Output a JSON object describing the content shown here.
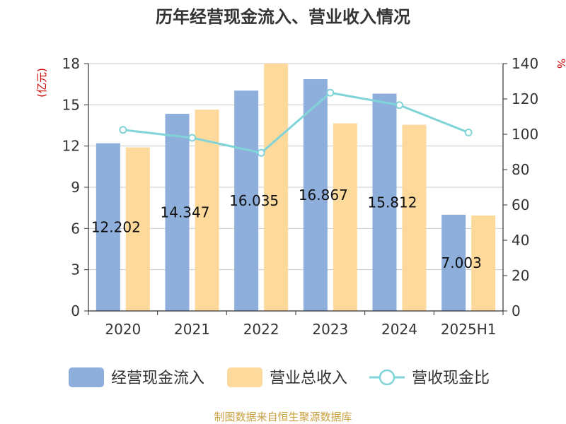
{
  "chart_data": {
    "type": "bar",
    "title": "历年经营现金流入、营业收入情况",
    "categories": [
      "2020",
      "2021",
      "2022",
      "2023",
      "2024",
      "2025H1"
    ],
    "y_left": {
      "label": "(亿元)",
      "ylim": [
        0,
        18
      ],
      "ticks": [
        "0",
        "3",
        "6",
        "9",
        "12",
        "15",
        "18"
      ]
    },
    "y_right": {
      "label": "%",
      "ylim": [
        0,
        140
      ],
      "ticks": [
        "0",
        "20",
        "40",
        "60",
        "80",
        "100",
        "120",
        "140"
      ]
    },
    "series": [
      {
        "name": "经营现金流入",
        "kind": "bar",
        "axis": "left",
        "color": "#8eaedb",
        "values": [
          12.202,
          14.347,
          16.035,
          16.867,
          15.812,
          7.003
        ],
        "labels": [
          "12.202",
          "14.347",
          "16.035",
          "16.867",
          "15.812",
          "7.003"
        ]
      },
      {
        "name": "营业总收入",
        "kind": "bar",
        "axis": "left",
        "color": "#fdd99b",
        "values": [
          11.9,
          14.65,
          18.0,
          13.65,
          13.55,
          6.95
        ]
      },
      {
        "name": "营收现金比",
        "kind": "line",
        "axis": "right",
        "color": "#80d4d8",
        "values": [
          102.5,
          98.0,
          89.5,
          123.5,
          116.5,
          101.0
        ]
      }
    ],
    "grid": true,
    "legend_position": "bottom"
  },
  "source_note": "制图数据来自恒生聚源数据库"
}
